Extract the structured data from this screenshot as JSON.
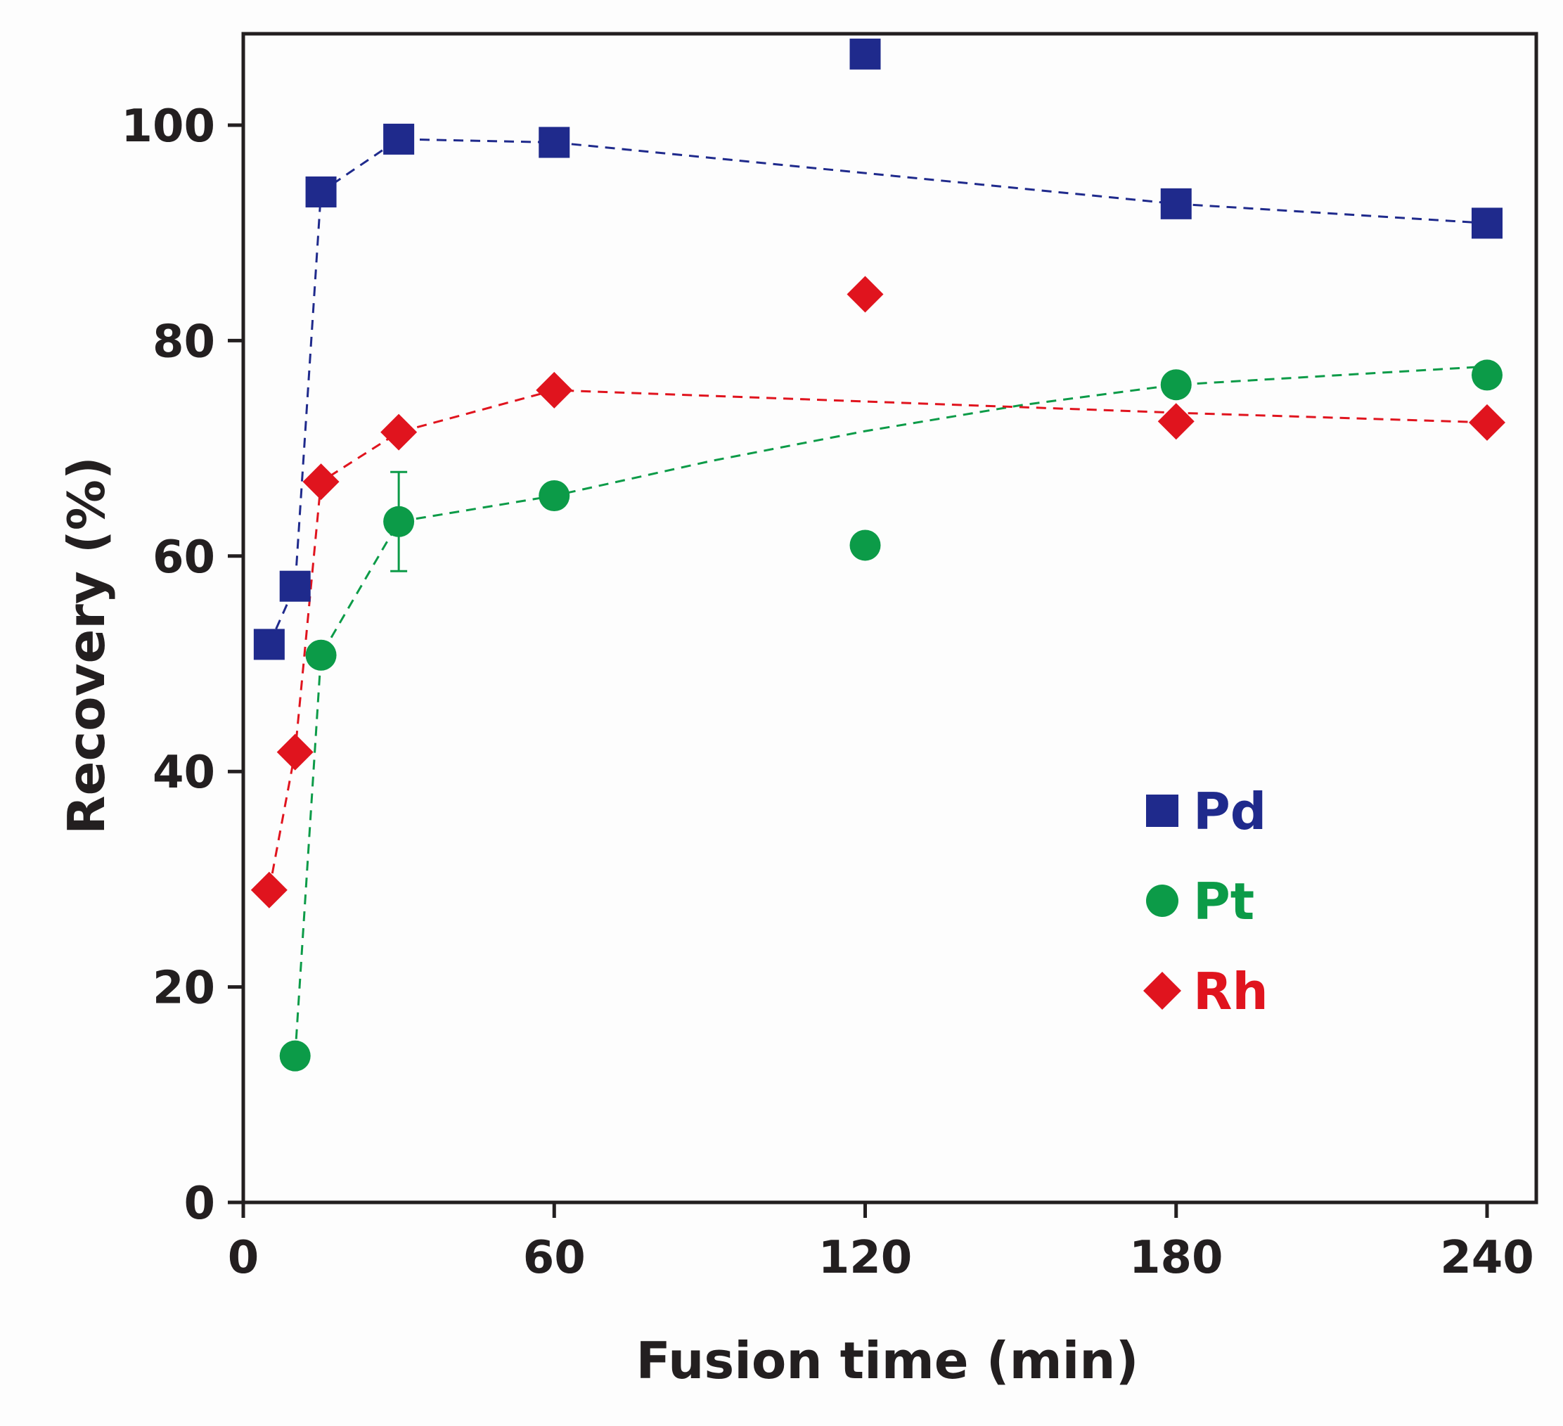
{
  "chart_data": {
    "type": "scatter",
    "title": "",
    "xlabel": "Fusion time (min)",
    "ylabel": "Recovery (%)",
    "xlim": [
      0,
      250
    ],
    "ylim": [
      0,
      108
    ],
    "xticks": [
      0,
      60,
      120,
      180,
      240
    ],
    "yticks": [
      0,
      20,
      40,
      60,
      80,
      100
    ],
    "grid": false,
    "legend_position": "lower-right",
    "series": [
      {
        "name": "Pd",
        "marker": "square",
        "color": "#1f2a8c",
        "points": [
          [
            5,
            51.8
          ],
          [
            10,
            57.2
          ],
          [
            15,
            93.8
          ],
          [
            30,
            98.7
          ],
          [
            60,
            98.4
          ],
          [
            120,
            106.6
          ],
          [
            180,
            92.7
          ],
          [
            240,
            90.9
          ]
        ],
        "trend": [
          [
            5,
            51.8
          ],
          [
            10,
            57.2
          ],
          [
            15,
            93.8
          ],
          [
            30,
            98.7
          ],
          [
            60,
            98.4
          ],
          [
            180,
            92.7
          ],
          [
            240,
            90.9
          ]
        ]
      },
      {
        "name": "Pt",
        "marker": "circle",
        "color": "#0c9b48",
        "points": [
          [
            10,
            13.6
          ],
          [
            15,
            50.8
          ],
          [
            30,
            63.2
          ],
          [
            60,
            65.6
          ],
          [
            120,
            61.0
          ],
          [
            180,
            75.9
          ],
          [
            240,
            76.8
          ]
        ],
        "error_bars": [
          {
            "x": 30,
            "y": 63.2,
            "err": 4.6
          }
        ],
        "trend": [
          [
            10,
            13.6
          ],
          [
            15,
            50.8
          ],
          [
            30,
            63.2
          ],
          [
            60,
            65.6
          ],
          [
            90,
            68.8
          ],
          [
            120,
            71.6
          ],
          [
            150,
            74.0
          ],
          [
            180,
            75.9
          ],
          [
            240,
            77.6
          ]
        ]
      },
      {
        "name": "Rh",
        "marker": "diamond",
        "color": "#e0141e",
        "points": [
          [
            5,
            29.0
          ],
          [
            10,
            41.8
          ],
          [
            15,
            66.9
          ],
          [
            30,
            71.5
          ],
          [
            60,
            75.4
          ],
          [
            120,
            84.3
          ],
          [
            180,
            72.5
          ],
          [
            240,
            72.4
          ]
        ],
        "trend": [
          [
            5,
            29.0
          ],
          [
            10,
            41.8
          ],
          [
            15,
            66.9
          ],
          [
            30,
            71.5
          ],
          [
            60,
            75.4
          ],
          [
            180,
            73.3
          ],
          [
            240,
            72.4
          ]
        ]
      }
    ]
  }
}
